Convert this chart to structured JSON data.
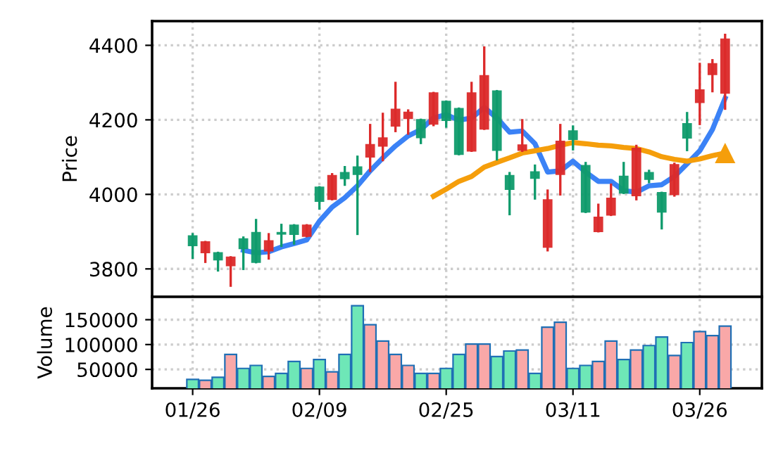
{
  "chart_data": [
    {
      "type": "candlestick",
      "ylabel": "Price",
      "ylim": [
        3725,
        4465
      ],
      "yticks": [
        3800,
        4000,
        4200,
        4400
      ],
      "grid": true,
      "tick_labels": "y",
      "categories": [
        null,
        null,
        null,
        null,
        null,
        null,
        null,
        null,
        null,
        null,
        null,
        null,
        null,
        null,
        null,
        null,
        null,
        null,
        null,
        null,
        null,
        null,
        null,
        null,
        null,
        null,
        null,
        null,
        null,
        null,
        null,
        null,
        null,
        null,
        null,
        null,
        null,
        null,
        null,
        null,
        null,
        null,
        null
      ],
      "ohlc": [
        [
          3863,
          3893,
          3830,
          3888
        ],
        [
          3872,
          3872,
          3819,
          3844
        ],
        [
          3825,
          3843,
          3796,
          3843
        ],
        [
          3831,
          3831,
          3755,
          3809
        ],
        [
          3855,
          3884,
          3800,
          3880
        ],
        [
          3818,
          3931,
          3818,
          3897
        ],
        [
          3875,
          3893,
          3828,
          3849
        ],
        [
          3894,
          3918,
          3862,
          3897
        ],
        [
          3893,
          3917,
          3868,
          3917
        ],
        [
          3917,
          3917,
          3888,
          3888
        ],
        [
          3982,
          4019,
          3962,
          4019
        ],
        [
          4050,
          4054,
          3987,
          3987
        ],
        [
          4043,
          4073,
          4026,
          4058
        ],
        [
          4054,
          4101,
          3894,
          4073
        ],
        [
          4133,
          4186,
          4063,
          4101
        ],
        [
          4151,
          4216,
          4092,
          4130
        ],
        [
          4228,
          4299,
          4170,
          4184
        ],
        [
          4220,
          4225,
          4163,
          4204
        ],
        [
          4153,
          4200,
          4138,
          4200
        ],
        [
          4272,
          4272,
          4186,
          4189
        ],
        [
          4199,
          4249,
          4182,
          4249
        ],
        [
          4108,
          4230,
          4108,
          4230
        ],
        [
          4272,
          4299,
          4117,
          4117
        ],
        [
          4318,
          4394,
          4176,
          4176
        ],
        [
          4119,
          4277,
          4094,
          4277
        ],
        [
          4014,
          4057,
          3947,
          4050
        ],
        [
          4132,
          4199,
          4117,
          4119
        ],
        [
          4044,
          4077,
          3989,
          4060
        ],
        [
          3985,
          4010,
          3850,
          3859
        ],
        [
          4142,
          4186,
          4000,
          4054
        ],
        [
          4148,
          4182,
          4121,
          4170
        ],
        [
          3953,
          4084,
          3953,
          4077
        ],
        [
          3938,
          3972,
          3901,
          3901
        ],
        [
          3989,
          4026,
          3945,
          3945
        ],
        [
          4004,
          4084,
          4004,
          4048
        ],
        [
          4123,
          4130,
          3987,
          3997
        ],
        [
          4041,
          4063,
          4033,
          4058
        ],
        [
          3953,
          4004,
          3909,
          4004
        ],
        [
          4079,
          4082,
          3997,
          4000
        ],
        [
          4152,
          4218,
          4119,
          4189
        ],
        [
          4280,
          4350,
          4189,
          4247
        ],
        [
          4350,
          4360,
          4277,
          4322
        ],
        [
          4416,
          4428,
          4230,
          4272
        ]
      ],
      "colors": [
        "#0f9b6c",
        "#dc2a2a",
        "#0f9b6c",
        "#dc2a2a",
        "#0f9b6c",
        "#0f9b6c",
        "#dc2a2a",
        "#0f9b6c",
        "#0f9b6c",
        "#dc2a2a",
        "#0f9b6c",
        "#dc2a2a",
        "#0f9b6c",
        "#0f9b6c",
        "#dc2a2a",
        "#dc2a2a",
        "#dc2a2a",
        "#dc2a2a",
        "#0f9b6c",
        "#dc2a2a",
        "#0f9b6c",
        "#0f9b6c",
        "#dc2a2a",
        "#dc2a2a",
        "#0f9b6c",
        "#0f9b6c",
        "#dc2a2a",
        "#0f9b6c",
        "#dc2a2a",
        "#dc2a2a",
        "#0f9b6c",
        "#0f9b6c",
        "#dc2a2a",
        "#dc2a2a",
        "#0f9b6c",
        "#dc2a2a",
        "#0f9b6c",
        "#0f9b6c",
        "#dc2a2a",
        "#0f9b6c",
        "#dc2a2a",
        "#dc2a2a",
        "#dc2a2a"
      ],
      "series": [
        {
          "type": "line",
          "color": "#3b82f6",
          "values": [
            null,
            null,
            null,
            null,
            3850,
            3843,
            3846,
            3859,
            3868,
            3878,
            3928,
            3966,
            3991,
            4023,
            4063,
            4098,
            4130,
            4157,
            4174,
            4205,
            4214,
            4199,
            4205,
            4233,
            4205,
            4167,
            4170,
            4136,
            4060,
            4063,
            4089,
            4060,
            4035,
            4035,
            4010,
            4006,
            4023,
            4026,
            4048,
            4082,
            4117,
            4174,
            4258
          ]
        },
        {
          "type": "line",
          "color": "#f59e0b",
          "values": [
            null,
            null,
            null,
            null,
            null,
            null,
            null,
            null,
            null,
            null,
            null,
            null,
            null,
            null,
            null,
            null,
            null,
            null,
            null,
            3995,
            4014,
            4035,
            4048,
            4073,
            4086,
            4098,
            4111,
            4117,
            4123,
            4132,
            4139,
            4136,
            4132,
            4130,
            4126,
            4123,
            4114,
            4101,
            4094,
            4089,
            4095,
            4104,
            4111
          ]
        },
        {
          "type": "scatter",
          "color": "#f59e0b",
          "marker": "triangle",
          "values": [
            null,
            null,
            null,
            null,
            null,
            null,
            null,
            null,
            null,
            null,
            null,
            null,
            null,
            null,
            null,
            null,
            null,
            null,
            null,
            null,
            null,
            null,
            null,
            null,
            null,
            null,
            null,
            null,
            null,
            null,
            null,
            null,
            null,
            null,
            null,
            null,
            null,
            null,
            null,
            null,
            null,
            null,
            4111
          ]
        }
      ]
    },
    {
      "type": "bar",
      "ylabel": "Volume",
      "ylim": [
        12000,
        196000
      ],
      "yticks": [
        50000,
        100000,
        150000
      ],
      "grid": true,
      "categories": [
        "01/26",
        null,
        null,
        null,
        null,
        null,
        null,
        null,
        null,
        null,
        "02/09",
        null,
        null,
        null,
        null,
        null,
        null,
        null,
        null,
        null,
        "02/25",
        null,
        null,
        null,
        null,
        null,
        null,
        null,
        null,
        null,
        "03/11",
        null,
        null,
        null,
        null,
        null,
        null,
        null,
        null,
        null,
        "03/26",
        null,
        null
      ],
      "values": [
        30000,
        28000,
        34000,
        80000,
        52000,
        58000,
        36000,
        42000,
        66000,
        52000,
        70000,
        45000,
        80000,
        178000,
        140000,
        107000,
        80000,
        58000,
        42000,
        42000,
        52000,
        80000,
        101000,
        101000,
        76000,
        87000,
        89000,
        42000,
        135000,
        145000,
        52000,
        58000,
        66000,
        107000,
        70000,
        89000,
        98000,
        115000,
        78000,
        104000,
        126000,
        118000,
        137000
      ],
      "colors": [
        "#6ee7b7",
        "#f9a8a8",
        "#6ee7b7",
        "#f9a8a8",
        "#6ee7b7",
        "#6ee7b7",
        "#f9a8a8",
        "#6ee7b7",
        "#6ee7b7",
        "#f9a8a8",
        "#6ee7b7",
        "#f9a8a8",
        "#6ee7b7",
        "#6ee7b7",
        "#f9a8a8",
        "#f9a8a8",
        "#f9a8a8",
        "#f9a8a8",
        "#6ee7b7",
        "#f9a8a8",
        "#6ee7b7",
        "#6ee7b7",
        "#f9a8a8",
        "#f9a8a8",
        "#6ee7b7",
        "#6ee7b7",
        "#f9a8a8",
        "#6ee7b7",
        "#f9a8a8",
        "#f9a8a8",
        "#6ee7b7",
        "#6ee7b7",
        "#f9a8a8",
        "#f9a8a8",
        "#6ee7b7",
        "#f9a8a8",
        "#6ee7b7",
        "#6ee7b7",
        "#f9a8a8",
        "#6ee7b7",
        "#f9a8a8",
        "#f9a8a8",
        "#f9a8a8"
      ]
    }
  ]
}
